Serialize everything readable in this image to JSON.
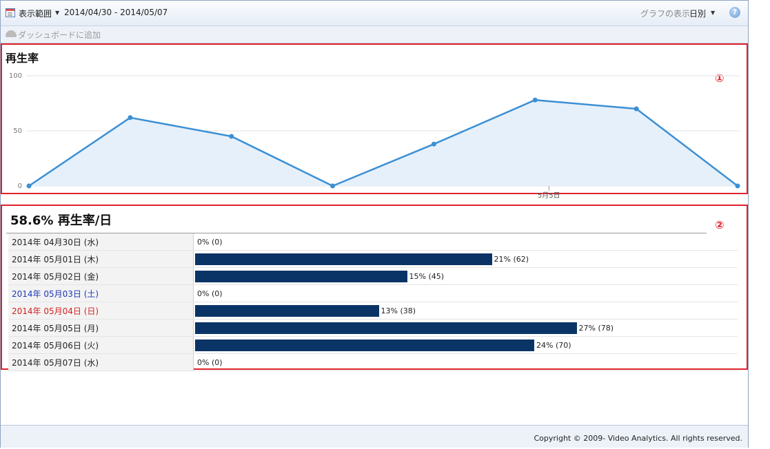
{
  "toolbar": {
    "range_label": "表示範囲",
    "range_value": "2014/04/30 - 2014/05/07",
    "graph_label": "グラフの表示",
    "graph_value": "日別",
    "help": "?"
  },
  "subbar": {
    "add_dashboard": "ダッシュボードに追加"
  },
  "annotations": {
    "one": "①",
    "two": "②"
  },
  "chart_data": {
    "type": "area",
    "title": "再生率",
    "ylim": [
      0,
      100
    ],
    "yticks": [
      "100",
      "50",
      "0"
    ],
    "x": [
      "2014/04/30",
      "2014/05/01",
      "2014/05/02",
      "2014/05/03",
      "2014/05/04",
      "2014/05/05",
      "2014/05/06",
      "2014/05/07"
    ],
    "values": [
      0,
      62,
      45,
      0,
      38,
      78,
      70,
      0
    ],
    "xtick_label": "5月5日",
    "grid": true,
    "color": "#3b8fd4"
  },
  "stats": {
    "overall": "58.6%",
    "title": "再生率/日",
    "rows": [
      {
        "date": "2014年 04月30日 (水)",
        "day": "weekday",
        "pct": 0,
        "label": "0% (0)"
      },
      {
        "date": "2014年 05月01日 (木)",
        "day": "weekday",
        "pct": 21,
        "label": "21% (62)"
      },
      {
        "date": "2014年 05月02日 (金)",
        "day": "weekday",
        "pct": 15,
        "label": "15% (45)"
      },
      {
        "date": "2014年 05月03日 (土)",
        "day": "sat",
        "pct": 0,
        "label": "0% (0)"
      },
      {
        "date": "2014年 05月04日 (日)",
        "day": "sun",
        "pct": 13,
        "label": "13% (38)"
      },
      {
        "date": "2014年 05月05日 (月)",
        "day": "weekday",
        "pct": 27,
        "label": "27% (78)"
      },
      {
        "date": "2014年 05月06日 (火)",
        "day": "weekday",
        "pct": 24,
        "label": "24% (70)"
      },
      {
        "date": "2014年 05月07日 (水)",
        "day": "weekday",
        "pct": 0,
        "label": "0% (0)"
      }
    ]
  },
  "footer": {
    "copyright": "Copyright © 2009- Video Analytics. All rights reserved."
  }
}
